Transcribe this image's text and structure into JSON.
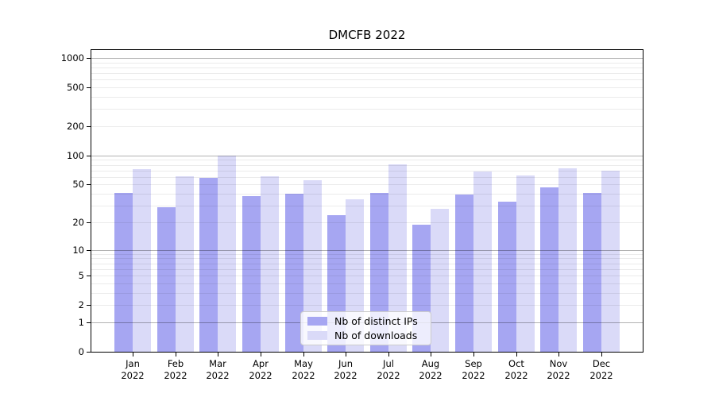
{
  "figure": {
    "title": "DMCFB 2022"
  },
  "chart_data": {
    "type": "bar",
    "title": "DMCFB 2022",
    "categories": [
      "Jan",
      "Feb",
      "Mar",
      "Apr",
      "May",
      "Jun",
      "Jul",
      "Aug",
      "Sep",
      "Oct",
      "Nov",
      "Dec"
    ],
    "category_year": "2022",
    "series": [
      {
        "name": "Nb of distinct IPs",
        "color": "#a6a6f2",
        "values": [
          41,
          29,
          59,
          38,
          40,
          24,
          41,
          19,
          39,
          33,
          47,
          41
        ]
      },
      {
        "name": "Nb of downloads",
        "color": "#dadaf8",
        "values": [
          72,
          61,
          100,
          61,
          55,
          35,
          81,
          28,
          68,
          62,
          74,
          70
        ]
      }
    ],
    "y_axis": {
      "scale": "log1p",
      "ticks": [
        0,
        1,
        2,
        5,
        10,
        20,
        50,
        100,
        200,
        500,
        1000
      ],
      "major_gridlines": [
        1,
        10,
        100,
        1000
      ]
    },
    "xlabel": "",
    "ylabel": "",
    "grid": true,
    "legend_position": "lower center"
  },
  "colors": {
    "axis": "#000000",
    "major_grid": "#b3b3b3",
    "minor_grid": "#ebebeb",
    "background": "#ffffff"
  }
}
